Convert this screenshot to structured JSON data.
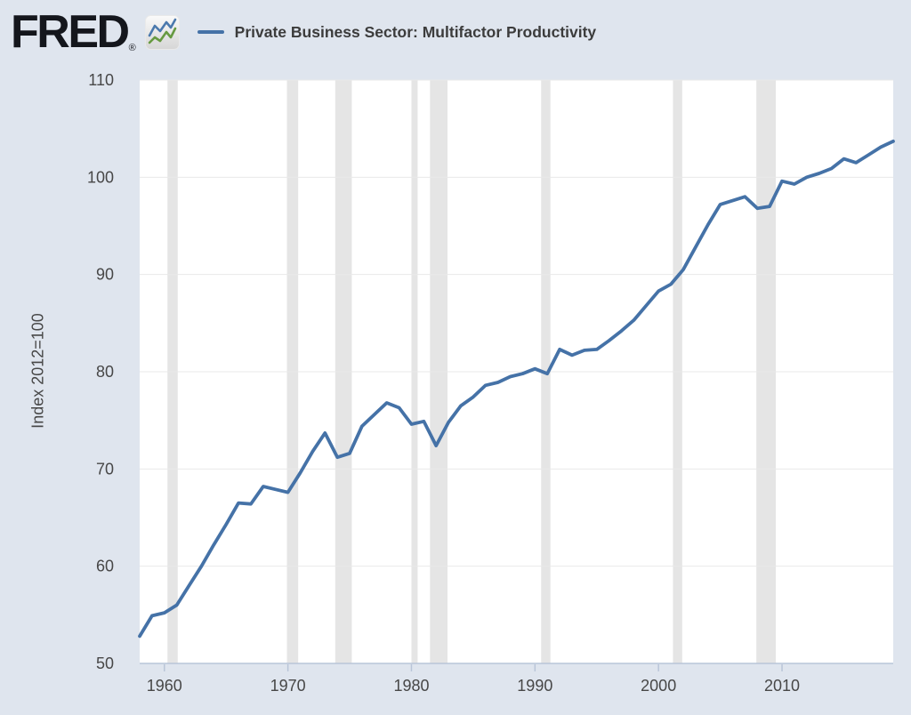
{
  "header": {
    "logo_text": "FRED",
    "registered_mark": "®",
    "logo_color": "#14161c",
    "icon": {
      "name": "fred-line-chart-icon",
      "blue": "#4b79ad",
      "green": "#679a41"
    }
  },
  "colors": {
    "background": "#dfe5ee",
    "plot_background": "#ffffff",
    "line": "#4572a7",
    "recession_band": "#e5e5e5",
    "gridline": "#e9e9e9",
    "axis": "#b9c5d8",
    "tick_label": "#474747"
  },
  "chart_data": {
    "type": "line",
    "title": "Private Business Sector: Multifactor Productivity",
    "xlabel": "",
    "ylabel": "Index 2012=100",
    "x_range": [
      1958,
      2019
    ],
    "ylim": [
      50,
      110
    ],
    "x_ticks": [
      1960,
      1970,
      1980,
      1990,
      2000,
      2010
    ],
    "y_ticks": [
      50,
      60,
      70,
      80,
      90,
      100,
      110
    ],
    "grid": "horizontal",
    "legend_position": "top",
    "series": [
      {
        "name": "Private Business Sector: Multifactor Productivity",
        "color": "#4572a7",
        "x": [
          1958,
          1959,
          1960,
          1961,
          1962,
          1963,
          1964,
          1965,
          1966,
          1967,
          1968,
          1969,
          1970,
          1971,
          1972,
          1973,
          1974,
          1975,
          1976,
          1977,
          1978,
          1979,
          1980,
          1981,
          1982,
          1983,
          1984,
          1985,
          1986,
          1987,
          1988,
          1989,
          1990,
          1991,
          1992,
          1993,
          1994,
          1995,
          1996,
          1997,
          1998,
          1999,
          2000,
          2001,
          2002,
          2003,
          2004,
          2005,
          2006,
          2007,
          2008,
          2009,
          2010,
          2011,
          2012,
          2013,
          2014,
          2015,
          2016,
          2017,
          2018,
          2019
        ],
        "values": [
          52.8,
          54.9,
          55.2,
          56.0,
          58.0,
          60.0,
          62.2,
          64.3,
          66.5,
          66.4,
          68.2,
          67.9,
          67.6,
          69.6,
          71.8,
          73.7,
          71.2,
          71.6,
          74.4,
          75.6,
          76.8,
          76.3,
          74.6,
          74.9,
          72.4,
          74.8,
          76.5,
          77.4,
          78.6,
          78.9,
          79.5,
          79.8,
          80.3,
          79.8,
          82.3,
          81.7,
          82.2,
          82.3,
          83.2,
          84.2,
          85.3,
          86.8,
          88.3,
          89.0,
          90.5,
          92.8,
          95.1,
          97.2,
          97.6,
          98.0,
          96.8,
          97.0,
          99.6,
          99.3,
          100.0,
          100.4,
          100.9,
          101.9,
          101.5,
          102.3,
          103.1,
          103.7
        ]
      }
    ],
    "recession_bands": [
      [
        1960.25,
        1961.08
      ],
      [
        1969.92,
        1970.83
      ],
      [
        1973.83,
        1975.17
      ],
      [
        1980.0,
        1980.5
      ],
      [
        1981.5,
        1982.92
      ],
      [
        1990.5,
        1991.25
      ],
      [
        2001.17,
        2001.92
      ],
      [
        2007.92,
        2009.5
      ]
    ]
  }
}
